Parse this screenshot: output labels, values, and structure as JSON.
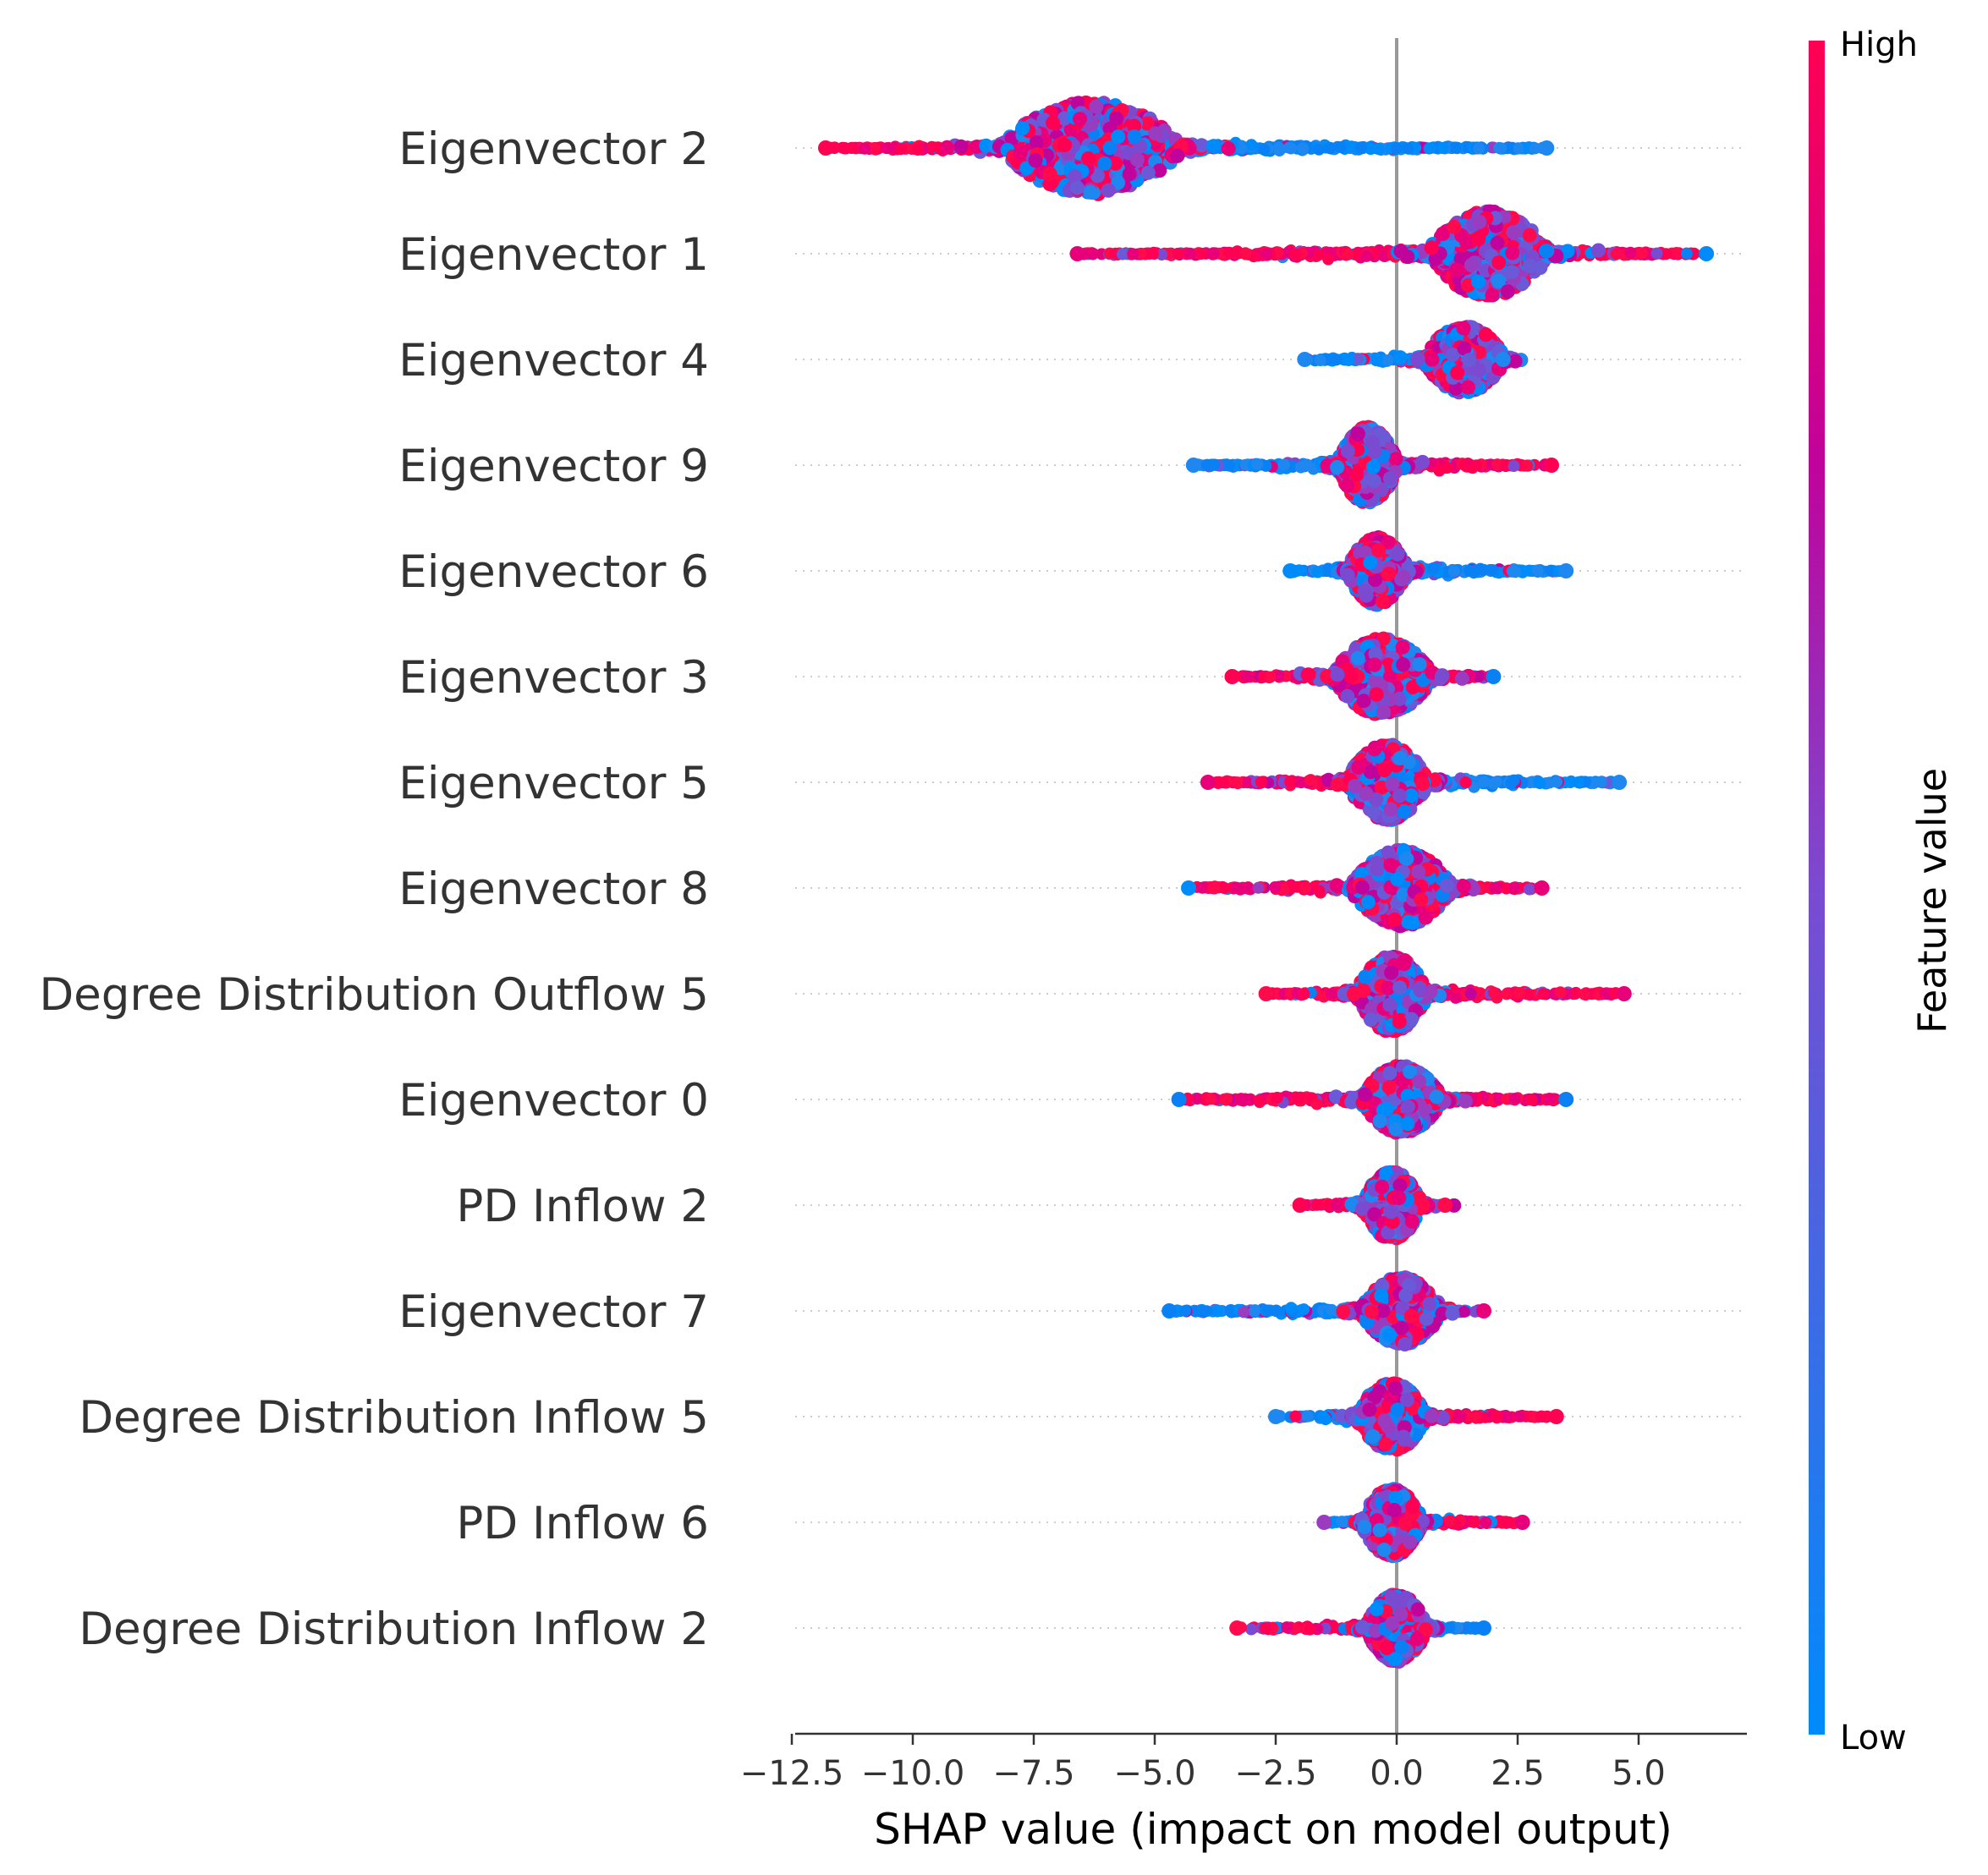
{
  "chart_data": {
    "type": "scatter",
    "subtype": "shap-beeswarm",
    "xlabel": "SHAP value (impact on model output)",
    "xlim": [
      -12.5,
      7.2
    ],
    "xticks": [
      -12.5,
      -10.0,
      -7.5,
      -5.0,
      -2.5,
      0.0,
      2.5,
      5.0
    ],
    "xtick_labels": [
      "−12.5",
      "−10.0",
      "−7.5",
      "−5.0",
      "−2.5",
      "0.0",
      "2.5",
      "5.0"
    ],
    "colorbar": {
      "label": "Feature value",
      "high": "High",
      "low": "Low",
      "high_color": "#ff0052",
      "low_color": "#008bfb"
    },
    "features": [
      {
        "name": "Eigenvector 2",
        "center": -6.3,
        "core_spread": 0.9,
        "min": -11.8,
        "max": 3.1,
        "min_color": "high",
        "max_color": "low",
        "left_color": "high",
        "right_color": "low",
        "core_half_height": 0.55
      },
      {
        "name": "Eigenvector 1",
        "center": 1.9,
        "core_spread": 0.6,
        "min": -6.6,
        "max": 6.4,
        "min_color": "high",
        "max_color": "low",
        "left_color": "high",
        "right_color": "high",
        "core_half_height": 0.5
      },
      {
        "name": "Eigenvector 4",
        "center": 1.4,
        "core_spread": 0.4,
        "min": -1.9,
        "max": 2.2,
        "min_color": "low",
        "max_color": "low",
        "left_color": "low",
        "right_color": "low",
        "core_half_height": 0.4
      },
      {
        "name": "Eigenvector 9",
        "center": -0.6,
        "core_spread": 0.3,
        "min": -4.2,
        "max": 3.2,
        "min_color": "low",
        "max_color": "high",
        "left_color": "low",
        "right_color": "high",
        "core_half_height": 0.45
      },
      {
        "name": "Eigenvector 6",
        "center": -0.4,
        "core_spread": 0.3,
        "min": -2.2,
        "max": 3.5,
        "min_color": "low",
        "max_color": "low",
        "left_color": "low",
        "right_color": "low",
        "core_half_height": 0.4
      },
      {
        "name": "Eigenvector 3",
        "center": -0.3,
        "core_spread": 0.5,
        "min": -3.4,
        "max": 2.0,
        "min_color": "high",
        "max_color": "low",
        "left_color": "high",
        "right_color": "high",
        "core_half_height": 0.45
      },
      {
        "name": "Eigenvector 5",
        "center": -0.2,
        "core_spread": 0.4,
        "min": -3.9,
        "max": 4.6,
        "min_color": "high",
        "max_color": "low",
        "left_color": "high",
        "right_color": "low",
        "core_half_height": 0.45
      },
      {
        "name": "Eigenvector 8",
        "center": 0.1,
        "core_spread": 0.5,
        "min": -4.3,
        "max": 3.0,
        "min_color": "low",
        "max_color": "high",
        "left_color": "high",
        "right_color": "high",
        "core_half_height": 0.45
      },
      {
        "name": "Degree Distribution Outflow 5",
        "center": -0.1,
        "core_spread": 0.35,
        "min": -2.7,
        "max": 4.7,
        "min_color": "high",
        "max_color": "high",
        "left_color": "high",
        "right_color": "high",
        "core_half_height": 0.45
      },
      {
        "name": "Eigenvector 0",
        "center": 0.1,
        "core_spread": 0.4,
        "min": -4.5,
        "max": 3.5,
        "min_color": "low",
        "max_color": "low",
        "left_color": "high",
        "right_color": "high",
        "core_half_height": 0.4
      },
      {
        "name": "PD Inflow 2",
        "center": -0.1,
        "core_spread": 0.3,
        "min": -2.0,
        "max": 1.0,
        "min_color": "high",
        "max_color": "high",
        "left_color": "high",
        "right_color": "low",
        "core_half_height": 0.4
      },
      {
        "name": "Eigenvector 7",
        "center": 0.1,
        "core_spread": 0.4,
        "min": -4.7,
        "max": 1.8,
        "min_color": "low",
        "max_color": "high",
        "left_color": "low",
        "right_color": "mid",
        "core_half_height": 0.4
      },
      {
        "name": "Degree Distribution Inflow 5",
        "center": -0.1,
        "core_spread": 0.35,
        "min": -2.5,
        "max": 3.3,
        "min_color": "low",
        "max_color": "high",
        "left_color": "low",
        "right_color": "high",
        "core_half_height": 0.4
      },
      {
        "name": "PD Inflow 6",
        "center": -0.1,
        "core_spread": 0.3,
        "min": -1.5,
        "max": 2.6,
        "min_color": "mid",
        "max_color": "high",
        "left_color": "low",
        "right_color": "high",
        "core_half_height": 0.4
      },
      {
        "name": "Degree Distribution Inflow 2",
        "center": 0.0,
        "core_spread": 0.3,
        "min": -3.3,
        "max": 1.8,
        "min_color": "high",
        "max_color": "low",
        "left_color": "high",
        "right_color": "low",
        "core_half_height": 0.4
      }
    ]
  }
}
